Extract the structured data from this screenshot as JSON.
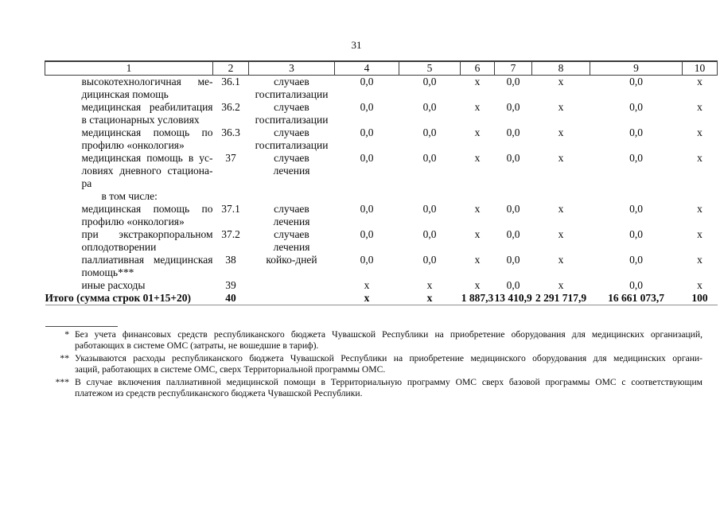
{
  "page": {
    "number": "31"
  },
  "table": {
    "header_cols": [
      "1",
      "2",
      "3",
      "4",
      "5",
      "6",
      "7",
      "8",
      "9",
      "10"
    ],
    "rows": [
      {
        "type": "data",
        "name_lines": [
          "высокотехнологичная ме-",
          "дицинская помощь"
        ],
        "num": "36.1",
        "unit_lines": [
          "случаев",
          "госпитализации"
        ],
        "values": [
          "0,0",
          "0,0",
          "x",
          "0,0",
          "x",
          "0,0",
          "x"
        ]
      },
      {
        "type": "data",
        "name_lines": [
          "медицинская реабилитация",
          "в стационарных условиях"
        ],
        "num": "36.2",
        "unit_lines": [
          "случаев",
          "госпитализации"
        ],
        "values": [
          "0,0",
          "0,0",
          "x",
          "0,0",
          "x",
          "0,0",
          "x"
        ]
      },
      {
        "type": "data",
        "name_lines": [
          "медицинская помощь по",
          "профилю «онкология»"
        ],
        "num": "36.3",
        "unit_lines": [
          "случаев",
          "госпитализации"
        ],
        "values": [
          "0,0",
          "0,0",
          "x",
          "0,0",
          "x",
          "0,0",
          "x"
        ]
      },
      {
        "type": "data",
        "name_lines": [
          "медицинская помощь в ус-",
          "ловиях дневного стациона-",
          "ра"
        ],
        "num": "37",
        "unit_lines": [
          "случаев",
          "лечения"
        ],
        "values": [
          "0,0",
          "0,0",
          "x",
          "0,0",
          "x",
          "0,0",
          "x"
        ]
      },
      {
        "type": "subheader",
        "name_lines": [
          "в том числе:"
        ],
        "num": "",
        "unit_lines": [],
        "values": [
          "",
          "",
          "",
          "",
          "",
          "",
          ""
        ]
      },
      {
        "type": "data",
        "name_lines": [
          "медицинская помощь по",
          "профилю «онкология»"
        ],
        "num": "37.1",
        "unit_lines": [
          "случаев",
          "лечения"
        ],
        "values": [
          "0,0",
          "0,0",
          "x",
          "0,0",
          "x",
          "0,0",
          "x"
        ]
      },
      {
        "type": "data",
        "name_lines": [
          "при экстракорпоральном",
          "оплодотворении"
        ],
        "num": "37.2",
        "unit_lines": [
          "случаев",
          "лечения"
        ],
        "values": [
          "0,0",
          "0,0",
          "x",
          "0,0",
          "x",
          "0,0",
          "x"
        ]
      },
      {
        "type": "data",
        "name_lines": [
          "паллиативная медицинская",
          "помощь***"
        ],
        "num": "38",
        "unit_lines": [
          "койко-дней"
        ],
        "values": [
          "0,0",
          "0,0",
          "x",
          "0,0",
          "x",
          "0,0",
          "x"
        ]
      },
      {
        "type": "data",
        "name_lines": [
          "иные расходы"
        ],
        "num": "39",
        "unit_lines": [],
        "values": [
          "x",
          "x",
          "x",
          "0,0",
          "x",
          "0,0",
          "x"
        ]
      },
      {
        "type": "total",
        "bold": true,
        "name_lines": [
          "Итого (сумма строк 01+15+20)"
        ],
        "num": "40",
        "unit_lines": [],
        "values": [
          "x",
          "x",
          "1 887,3",
          "13 410,9",
          "2 291 717,9",
          "16 661 073,7",
          "100"
        ]
      }
    ]
  },
  "footnotes": [
    {
      "marker": "*",
      "lines": [
        "Без учета финансовых средств республиканского бюджета Чувашской Республики на приобретение оборудования для медицинских организаций,",
        "работающих в системе ОМС (затраты, не вошедшие в тариф)."
      ]
    },
    {
      "marker": "**",
      "lines": [
        "Указываются расходы республиканского бюджета Чувашской Республики на приобретение медицинского оборудования для медицинских органи-",
        "заций, работающих в системе ОМС, сверх Территориальной программы ОМС."
      ]
    },
    {
      "marker": "***",
      "lines": [
        "В случае включения паллиативной медицинской помощи в Территориальную программу ОМС сверх базовой программы ОМС с соответствующим",
        "платежом из средств республиканского бюджета Чувашской Республики."
      ]
    }
  ]
}
